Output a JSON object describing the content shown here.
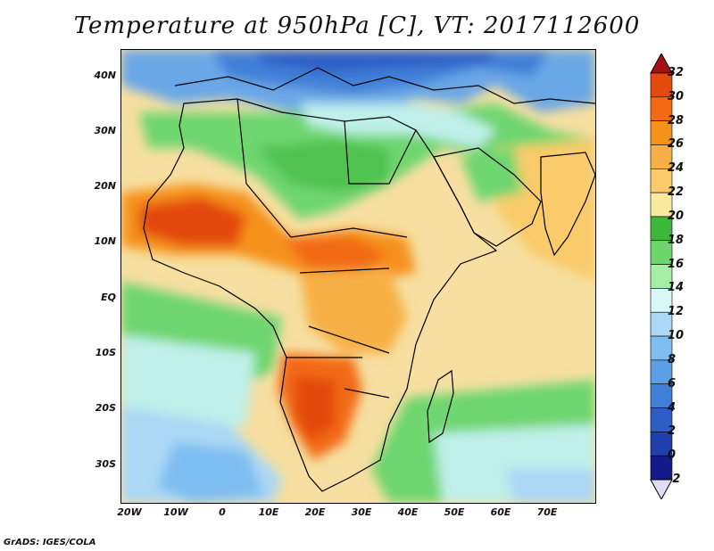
{
  "title": "Temperature at 950hPa [C], VT: 2017112600",
  "footer": "GrADS: IGES/COLA",
  "axes": {
    "lat_labels": [
      "40N",
      "30N",
      "20N",
      "10N",
      "EQ",
      "10S",
      "20S",
      "30S"
    ],
    "lon_labels": [
      "20W",
      "10W",
      "0",
      "10E",
      "20E",
      "30E",
      "40E",
      "50E",
      "60E",
      "70E"
    ],
    "lat_range": [
      -37,
      45
    ],
    "lon_range": [
      -22,
      80
    ],
    "lat_units": "degrees",
    "lon_units": "degrees"
  },
  "colorbar": {
    "labels": [
      "32",
      "30",
      "28",
      "26",
      "24",
      "22",
      "20",
      "18",
      "16",
      "14",
      "12",
      "10",
      "8",
      "6",
      "4",
      "2",
      "0",
      "-2"
    ],
    "colors": [
      "#a50f15",
      "#e34a0d",
      "#f26b12",
      "#f5921b",
      "#f7b045",
      "#f9cb6a",
      "#fbe99e",
      "#3cb73c",
      "#6fd66f",
      "#a5eea5",
      "#d8f7f7",
      "#aad8f5",
      "#7ebdf0",
      "#5a9fe6",
      "#3f7fd8",
      "#2d5ec6",
      "#1f3fae",
      "#141a8c",
      "#e0dcf5"
    ]
  }
}
